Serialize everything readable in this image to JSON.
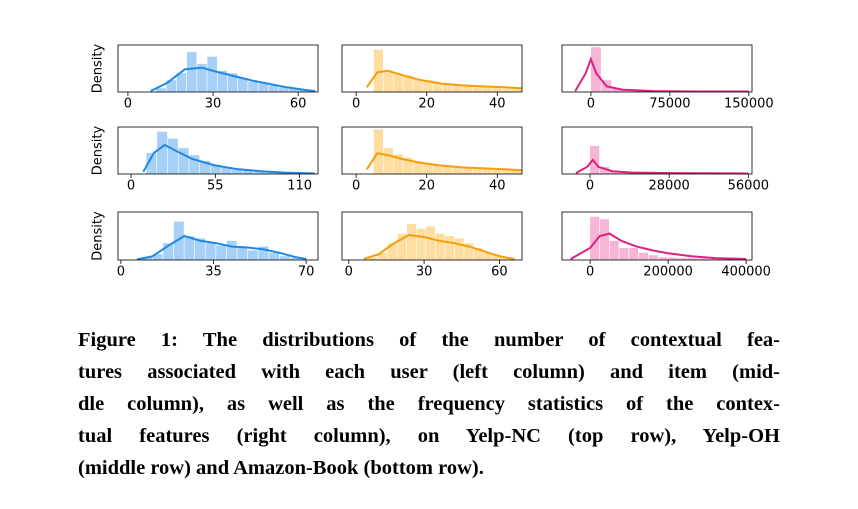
{
  "chart_data": [
    {
      "type": "histogram",
      "ylabel": "Density",
      "color": "#1e88e5",
      "bar_color": "#90c4f2",
      "bins": [
        10,
        13.6,
        17.2,
        20.8,
        24.4,
        28,
        31.6,
        35.2,
        38.8,
        42.4,
        46,
        49.6,
        53.2,
        56.8,
        60.4,
        64
      ],
      "values": [
        8,
        25,
        40,
        85,
        60,
        75,
        45,
        40,
        30,
        22,
        18,
        14,
        10,
        7,
        4
      ],
      "kde": {
        "x": [
          8,
          14,
          20,
          26,
          32,
          38,
          44,
          50,
          56,
          62,
          66
        ],
        "y": [
          2,
          20,
          48,
          52,
          42,
          33,
          24,
          17,
          10,
          5,
          2
        ]
      },
      "xlim": [
        -3.5,
        67
      ],
      "xticks": [
        0,
        30,
        60
      ],
      "ylim": [
        0,
        100
      ]
    },
    {
      "type": "histogram",
      "color": "#f59d0a",
      "bar_color": "#fcd488",
      "bins": [
        5,
        7.8,
        10.6,
        13.4,
        16.2,
        19,
        21.8,
        24.6,
        27.4,
        30.2,
        33,
        35.8,
        38.6,
        41.4,
        44.2,
        47
      ],
      "values": [
        90,
        45,
        40,
        35,
        28,
        25,
        20,
        16,
        14,
        12,
        10,
        10,
        9,
        8,
        7
      ],
      "kde": {
        "x": [
          3,
          6,
          9,
          13,
          18,
          24,
          30,
          36,
          42,
          47
        ],
        "y": [
          10,
          42,
          45,
          36,
          26,
          18,
          14,
          12,
          10,
          8
        ]
      },
      "xlim": [
        -4,
        47
      ],
      "xticks": [
        0,
        20,
        40
      ],
      "ylim": [
        0,
        100
      ]
    },
    {
      "type": "histogram",
      "color": "#e0207e",
      "bar_color": "#f5a3cc",
      "bins": [
        0,
        10000,
        20000,
        30000,
        40000,
        50000,
        60000,
        70000,
        80000,
        90000,
        100000,
        110000,
        120000,
        130000,
        140000,
        150000
      ],
      "values": [
        95,
        25,
        8,
        4,
        3,
        2,
        1,
        1,
        1,
        1,
        1,
        1,
        1,
        1,
        1
      ],
      "kde": {
        "x": [
          -15000,
          -5000,
          0,
          5000,
          15000,
          30000,
          60000,
          100000,
          150000
        ],
        "y": [
          2,
          40,
          70,
          40,
          12,
          5,
          2,
          1,
          1
        ]
      },
      "xlim": [
        -27500,
        153000
      ],
      "xticks": [
        0,
        75000,
        150000
      ],
      "ylim": [
        0,
        100
      ]
    },
    {
      "type": "histogram",
      "ylabel": "Density",
      "color": "#1e88e5",
      "bar_color": "#90c4f2",
      "bins": [
        10,
        17,
        24,
        31,
        38,
        45,
        52,
        59,
        66,
        73,
        80,
        87,
        94,
        101,
        108,
        115
      ],
      "values": [
        45,
        90,
        75,
        55,
        40,
        28,
        20,
        15,
        12,
        9,
        7,
        5,
        4,
        3,
        2
      ],
      "kde": {
        "x": [
          8,
          15,
          22,
          30,
          40,
          55,
          70,
          85,
          100,
          120
        ],
        "y": [
          5,
          45,
          62,
          48,
          32,
          18,
          10,
          6,
          3,
          1
        ]
      },
      "xlim": [
        -8.5,
        122
      ],
      "xticks": [
        0,
        55,
        110
      ],
      "ylim": [
        0,
        100
      ]
    },
    {
      "type": "histogram",
      "color": "#f59d0a",
      "bar_color": "#fcd488",
      "bins": [
        5,
        7.8,
        10.6,
        13.4,
        16.2,
        19,
        21.8,
        24.6,
        27.4,
        30.2,
        33,
        35.8,
        38.6,
        41.4,
        44.2,
        47
      ],
      "values": [
        95,
        55,
        42,
        35,
        28,
        24,
        20,
        16,
        14,
        12,
        11,
        10,
        9,
        8,
        7
      ],
      "kde": {
        "x": [
          3,
          6,
          9,
          13,
          18,
          24,
          30,
          36,
          42,
          47
        ],
        "y": [
          10,
          44,
          40,
          32,
          24,
          18,
          14,
          12,
          10,
          8
        ]
      },
      "xlim": [
        -4,
        47
      ],
      "xticks": [
        0,
        20,
        40
      ],
      "ylim": [
        0,
        100
      ]
    },
    {
      "type": "histogram",
      "color": "#e0207e",
      "bar_color": "#f5a3cc",
      "bins": [
        0,
        3500,
        7000,
        10500,
        14000,
        17500,
        21000,
        24500,
        28000,
        31500,
        35000,
        38500,
        42000,
        45500,
        49000,
        52500
      ],
      "values": [
        60,
        15,
        6,
        3,
        2,
        2,
        1,
        1,
        1,
        1,
        1,
        1,
        1,
        1,
        1
      ],
      "kde": {
        "x": [
          -5000,
          -1000,
          1000,
          3000,
          8000,
          15000,
          30000,
          56000
        ],
        "y": [
          2,
          15,
          30,
          15,
          6,
          3,
          2,
          1
        ]
      },
      "xlim": [
        -9900,
        57300
      ],
      "xticks": [
        0,
        28000,
        56000
      ],
      "ylim": [
        0,
        100
      ]
    },
    {
      "type": "histogram",
      "ylabel": "Density",
      "color": "#1e88e5",
      "bar_color": "#90c4f2",
      "bins": [
        8,
        12,
        16,
        20,
        24,
        28,
        32,
        36,
        40,
        44,
        48,
        52,
        56,
        60,
        64,
        68
      ],
      "values": [
        6,
        12,
        35,
        80,
        50,
        45,
        35,
        30,
        40,
        25,
        20,
        28,
        15,
        8,
        4
      ],
      "kde": {
        "x": [
          6,
          12,
          18,
          24,
          30,
          36,
          42,
          48,
          54,
          60,
          66,
          70
        ],
        "y": [
          1,
          8,
          30,
          50,
          40,
          35,
          28,
          26,
          22,
          15,
          6,
          2
        ]
      },
      "xlim": [
        -1.1,
        74.5
      ],
      "xticks": [
        0,
        35,
        70
      ],
      "ylim": [
        0,
        100
      ]
    },
    {
      "type": "histogram",
      "color": "#f59d0a",
      "bar_color": "#fcd488",
      "bins": [
        8,
        11.8,
        15.6,
        19.4,
        23.2,
        27,
        30.8,
        34.6,
        38.4,
        42.2,
        46,
        49.8,
        53.6,
        57.4,
        61.2,
        65
      ],
      "values": [
        5,
        15,
        35,
        55,
        75,
        65,
        70,
        55,
        50,
        45,
        35,
        25,
        15,
        10,
        5
      ],
      "kde": {
        "x": [
          6,
          12,
          18,
          24,
          30,
          36,
          42,
          48,
          54,
          60,
          66
        ],
        "y": [
          2,
          12,
          35,
          52,
          48,
          40,
          35,
          28,
          18,
          8,
          2
        ]
      },
      "xlim": [
        -2.7,
        69
      ],
      "xticks": [
        0,
        30,
        60
      ],
      "ylim": [
        0,
        100
      ]
    },
    {
      "type": "histogram",
      "color": "#e0207e",
      "bar_color": "#f5a3cc",
      "bins": [
        0,
        25000,
        50000,
        75000,
        100000,
        125000,
        150000,
        175000,
        200000,
        225000,
        250000,
        275000,
        300000,
        325000,
        350000,
        375000
      ],
      "values": [
        90,
        85,
        40,
        25,
        25,
        15,
        10,
        6,
        5,
        4,
        4,
        3,
        2,
        2,
        1
      ],
      "kde": {
        "x": [
          -50000,
          0,
          25000,
          50000,
          80000,
          120000,
          160000,
          200000,
          260000,
          320000,
          400000
        ],
        "y": [
          2,
          25,
          50,
          55,
          40,
          28,
          20,
          14,
          8,
          4,
          2
        ]
      },
      "xlim": [
        -72000,
        415000
      ],
      "xticks": [
        0,
        200000,
        400000
      ],
      "ylim": [
        0,
        100
      ]
    }
  ],
  "caption": [
    "Figure 1: The distributions of the number of contextual fea-",
    "tures associated with each user (left column) and item (mid-",
    "dle column), as well as the frequency statistics of the contex-",
    "tual features (right column), on Yelp-NC (top row), Yelp-OH",
    "(middle row) and Amazon-Book (bottom row)."
  ]
}
